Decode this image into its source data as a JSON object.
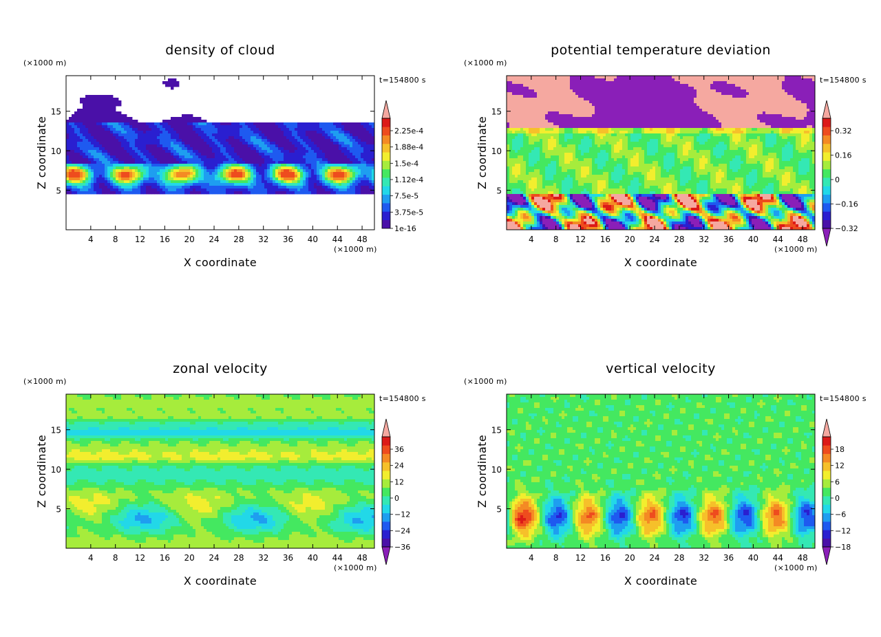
{
  "figure_time_label": "t=154800 s",
  "chart_data": [
    {
      "type": "heatmap",
      "title": "density of cloud",
      "xlabel": "X coordinate",
      "ylabel": "Z coordinate",
      "x_unit": "(×1000 m)",
      "y_unit": "(×1000 m)",
      "time_label": "t=154800 s",
      "xlim": [
        0,
        50
      ],
      "ylim": [
        0,
        19.5
      ],
      "x_ticks": [
        4,
        8,
        12,
        16,
        20,
        24,
        28,
        32,
        36,
        40,
        44,
        48
      ],
      "y_ticks": [
        5,
        10,
        15
      ],
      "colorbar_labels": [
        "2.25e-4",
        "1.88e-4",
        "1.5e-4",
        "1.12e-4",
        "7.5e-5",
        "3.75e-5",
        "1e-16"
      ],
      "field": "cloud",
      "colors": {
        "below": "#ffffff",
        "above": "#f5a8a0"
      }
    },
    {
      "type": "heatmap",
      "title": "potential temperature deviation",
      "xlabel": "X coordinate",
      "ylabel": "Z coordinate",
      "x_unit": "(×1000 m)",
      "y_unit": "(×1000 m)",
      "time_label": "t=154800 s",
      "xlim": [
        0,
        50
      ],
      "ylim": [
        0,
        19.5
      ],
      "x_ticks": [
        4,
        8,
        12,
        16,
        20,
        24,
        28,
        32,
        36,
        40,
        44,
        48
      ],
      "y_ticks": [
        5,
        10,
        15
      ],
      "colorbar_labels": [
        "0.32",
        "0.16",
        "0",
        "−0.16",
        "−0.32"
      ],
      "field": "theta",
      "colors": {
        "below": "#8a1fb8",
        "above": "#f5a8a0"
      }
    },
    {
      "type": "heatmap",
      "title": "zonal velocity",
      "xlabel": "X coordinate",
      "ylabel": "Z coordinate",
      "x_unit": "(×1000 m)",
      "y_unit": "(×1000 m)",
      "time_label": "t=154800 s",
      "xlim": [
        0,
        50
      ],
      "ylim": [
        0,
        19.5
      ],
      "x_ticks": [
        4,
        8,
        12,
        16,
        20,
        24,
        28,
        32,
        36,
        40,
        44,
        48
      ],
      "y_ticks": [
        5,
        10,
        15
      ],
      "colorbar_labels": [
        "36",
        "24",
        "12",
        "0",
        "−12",
        "−24",
        "−36"
      ],
      "field": "u",
      "colors": {
        "below": "#8a1fb8",
        "above": "#f5a8a0"
      }
    },
    {
      "type": "heatmap",
      "title": "vertical velocity",
      "xlabel": "X coordinate",
      "ylabel": "Z coordinate",
      "x_unit": "(×1000 m)",
      "y_unit": "(×1000 m)",
      "time_label": "t=154800 s",
      "xlim": [
        0,
        50
      ],
      "ylim": [
        0,
        19.5
      ],
      "x_ticks": [
        4,
        8,
        12,
        16,
        20,
        24,
        28,
        32,
        36,
        40,
        44,
        48
      ],
      "y_ticks": [
        5,
        10,
        15
      ],
      "colorbar_labels": [
        "18",
        "12",
        "6",
        "0",
        "−6",
        "−12",
        "−18"
      ],
      "field": "w",
      "colors": {
        "below": "#8a1fb8",
        "above": "#f5a8a0"
      }
    }
  ],
  "palette": [
    "#4a10a8",
    "#2a1fd0",
    "#1e5af0",
    "#1e9ef0",
    "#22d8e8",
    "#34e8b4",
    "#44e860",
    "#a6ec3c",
    "#f2ee2e",
    "#f6c02a",
    "#f48a24",
    "#ee4c1e",
    "#dc1a18"
  ]
}
